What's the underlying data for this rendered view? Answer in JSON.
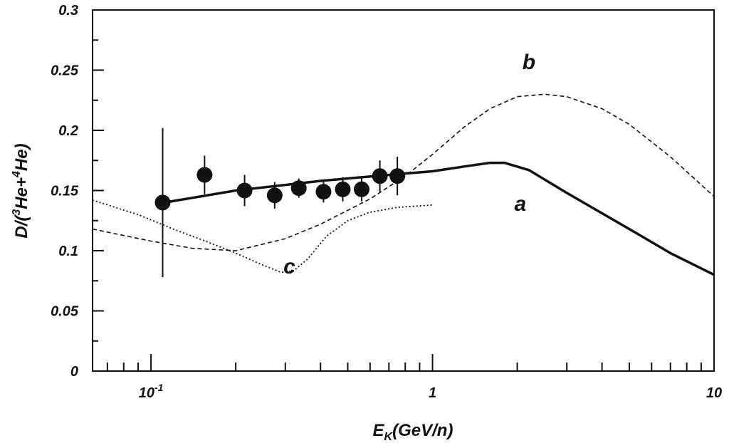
{
  "chart_data": {
    "type": "scatter",
    "title": "",
    "xlabel": {
      "main": "E",
      "sub": "K",
      "rest": "(GeV/n)"
    },
    "ylabel": {
      "p1": "D/(",
      "sup1": "3",
      "p2": "He+",
      "sup2": "4",
      "p3": "He)"
    },
    "xscale": "log",
    "xlim": [
      0.062,
      10
    ],
    "ylim": [
      0,
      0.3
    ],
    "grid": false,
    "y_ticks": [
      0,
      0.05,
      0.1,
      0.15,
      0.2,
      0.25,
      0.3
    ],
    "y_tick_labels": [
      "0",
      "0.05",
      "0.1",
      "0.15",
      "0.2",
      "0.25",
      "0.3"
    ],
    "x_major_ticks": [
      {
        "value": 0.1,
        "label_base": "10",
        "label_exp": "-1"
      },
      {
        "value": 1,
        "label_base": "1",
        "label_exp": ""
      },
      {
        "value": 10,
        "label_base": "10",
        "label_exp": ""
      }
    ],
    "data_points": [
      {
        "x": 0.11,
        "y": 0.14,
        "yerr": 0.062
      },
      {
        "x": 0.155,
        "y": 0.163,
        "yerr": 0.016
      },
      {
        "x": 0.215,
        "y": 0.15,
        "yerr": 0.013
      },
      {
        "x": 0.275,
        "y": 0.146,
        "yerr": 0.011
      },
      {
        "x": 0.335,
        "y": 0.152,
        "yerr": 0.008
      },
      {
        "x": 0.41,
        "y": 0.149,
        "yerr": 0.009
      },
      {
        "x": 0.48,
        "y": 0.151,
        "yerr": 0.01
      },
      {
        "x": 0.56,
        "y": 0.151,
        "yerr": 0.01
      },
      {
        "x": 0.65,
        "y": 0.162,
        "yerr": 0.013
      },
      {
        "x": 0.75,
        "y": 0.162,
        "yerr": 0.016
      }
    ],
    "curves": [
      {
        "label": "a",
        "style": "solid",
        "points": [
          [
            0.105,
            0.139
          ],
          [
            0.2,
            0.15
          ],
          [
            0.4,
            0.158
          ],
          [
            0.7,
            0.163
          ],
          [
            1.0,
            0.166
          ],
          [
            1.3,
            0.17
          ],
          [
            1.6,
            0.173
          ],
          [
            1.8,
            0.173
          ],
          [
            2.2,
            0.167
          ],
          [
            3.0,
            0.148
          ],
          [
            5.0,
            0.118
          ],
          [
            7.0,
            0.098
          ],
          [
            10.0,
            0.08
          ]
        ]
      },
      {
        "label": "b",
        "style": "dashed",
        "points": [
          [
            0.062,
            0.118
          ],
          [
            0.1,
            0.108
          ],
          [
            0.14,
            0.102
          ],
          [
            0.2,
            0.1
          ],
          [
            0.3,
            0.11
          ],
          [
            0.4,
            0.122
          ],
          [
            0.6,
            0.143
          ],
          [
            0.8,
            0.162
          ],
          [
            1.0,
            0.18
          ],
          [
            1.3,
            0.203
          ],
          [
            1.6,
            0.218
          ],
          [
            2.0,
            0.228
          ],
          [
            2.5,
            0.23
          ],
          [
            3.0,
            0.228
          ],
          [
            4.0,
            0.218
          ],
          [
            5.0,
            0.205
          ],
          [
            7.0,
            0.178
          ],
          [
            10.0,
            0.145
          ]
        ]
      },
      {
        "label": "c",
        "style": "dotted",
        "points": [
          [
            0.062,
            0.142
          ],
          [
            0.09,
            0.13
          ],
          [
            0.12,
            0.118
          ],
          [
            0.16,
            0.107
          ],
          [
            0.2,
            0.098
          ],
          [
            0.25,
            0.088
          ],
          [
            0.29,
            0.082
          ],
          [
            0.32,
            0.083
          ],
          [
            0.36,
            0.093
          ],
          [
            0.42,
            0.112
          ],
          [
            0.5,
            0.125
          ],
          [
            0.6,
            0.132
          ],
          [
            0.75,
            0.136
          ],
          [
            1.0,
            0.138
          ]
        ]
      }
    ],
    "annotations": [
      {
        "text": "b",
        "x": 2.2,
        "y": 0.251
      },
      {
        "text": "a",
        "x": 2.05,
        "y": 0.133
      },
      {
        "text": "c",
        "x": 0.31,
        "y": 0.081
      }
    ],
    "colors": {
      "line": "#111111",
      "background": "#ffffff"
    }
  }
}
